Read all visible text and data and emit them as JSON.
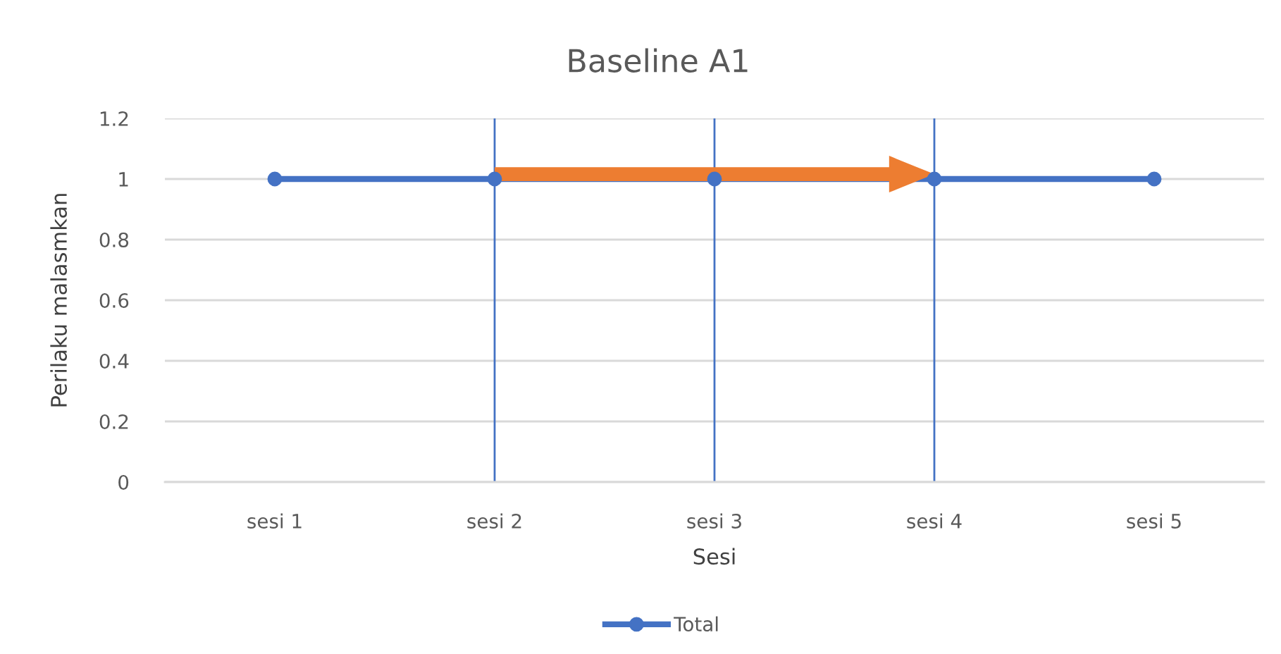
{
  "chart_data": {
    "type": "line",
    "title": "Baseline A1",
    "xlabel": "Sesi",
    "ylabel": "Perilaku malasmkan",
    "categories": [
      "sesi 1",
      "sesi 2",
      "sesi 3",
      "sesi 4",
      "sesi 5"
    ],
    "series": [
      {
        "name": "Total",
        "color": "#4472c4",
        "values": [
          1,
          1,
          1,
          1,
          1
        ]
      }
    ],
    "ylim": [
      0,
      1.2
    ],
    "yticks": [
      0,
      0.2,
      0.4,
      0.6,
      0.8,
      1,
      1.2
    ],
    "grid": "y",
    "legend": "bottom",
    "marker": "circle",
    "line_style": "solid",
    "ref_lines": [
      {
        "axis": "x",
        "value": "sesi 2",
        "color": "#4472c4"
      },
      {
        "axis": "x",
        "value": "sesi 3",
        "color": "#4472c4"
      },
      {
        "axis": "x",
        "value": "sesi 4",
        "color": "#4472c4"
      }
    ]
  }
}
